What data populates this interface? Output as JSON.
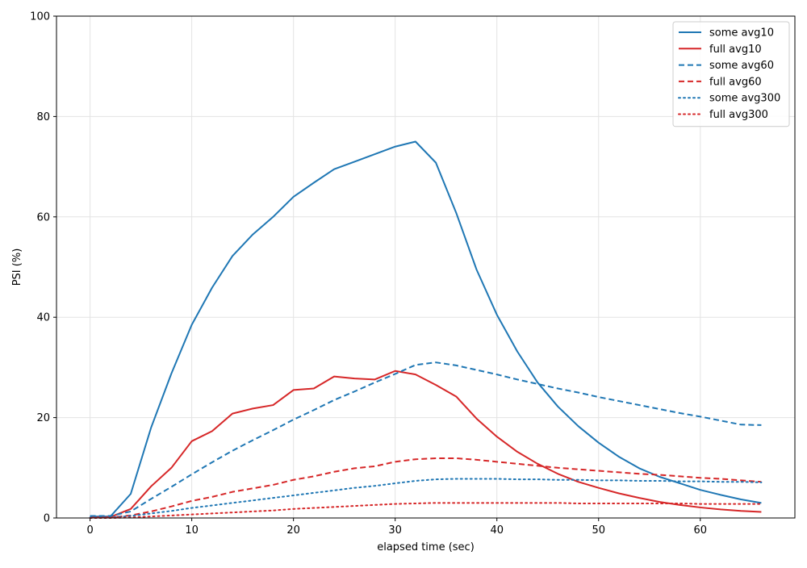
{
  "chart_data": {
    "type": "line",
    "title": "",
    "xlabel": "elapsed time (sec)",
    "ylabel": "PSI (%)",
    "xlim": [
      -3.3,
      69.3
    ],
    "ylim": [
      0,
      100
    ],
    "xticks": [
      0,
      10,
      20,
      30,
      40,
      50,
      60
    ],
    "yticks": [
      0,
      20,
      40,
      60,
      80,
      100
    ],
    "grid": true,
    "legend_position": "top-right",
    "x": [
      0,
      2,
      4,
      6,
      8,
      10,
      12,
      14,
      16,
      18,
      20,
      22,
      24,
      26,
      28,
      30,
      32,
      34,
      36,
      38,
      40,
      42,
      44,
      46,
      48,
      50,
      52,
      54,
      56,
      58,
      60,
      62,
      64,
      66
    ],
    "series": [
      {
        "name": "some avg10",
        "color": "#1f77b4",
        "style": "solid",
        "values": [
          0.3,
          0.3,
          4.8,
          18.0,
          28.8,
          38.5,
          45.9,
          52.2,
          56.5,
          60.0,
          64.0,
          66.8,
          69.5,
          71.0,
          72.5,
          74.0,
          75.0,
          70.8,
          60.8,
          49.5,
          40.5,
          33.2,
          27.0,
          22.2,
          18.3,
          15.0,
          12.2,
          9.9,
          8.2,
          6.9,
          5.6,
          4.6,
          3.7,
          3.0
        ]
      },
      {
        "name": "full avg10",
        "color": "#d62728",
        "style": "solid",
        "values": [
          0.1,
          0.2,
          1.8,
          6.3,
          10.0,
          15.3,
          17.3,
          20.8,
          21.8,
          22.5,
          25.5,
          25.8,
          28.2,
          27.8,
          27.6,
          29.3,
          28.6,
          26.5,
          24.2,
          19.8,
          16.2,
          13.2,
          10.8,
          8.8,
          7.2,
          6.0,
          4.9,
          4.0,
          3.2,
          2.6,
          2.1,
          1.7,
          1.4,
          1.2
        ]
      },
      {
        "name": "some avg60",
        "color": "#1f77b4",
        "style": "dashed",
        "values": [
          0.4,
          0.4,
          1.3,
          3.8,
          6.2,
          8.7,
          11.1,
          13.4,
          15.5,
          17.5,
          19.6,
          21.5,
          23.5,
          25.2,
          27.0,
          28.7,
          30.5,
          31.0,
          30.4,
          29.5,
          28.6,
          27.6,
          26.7,
          25.8,
          25.0,
          24.1,
          23.3,
          22.5,
          21.7,
          20.9,
          20.2,
          19.4,
          18.6,
          18.5
        ]
      },
      {
        "name": "full avg60",
        "color": "#d62728",
        "style": "dashed",
        "values": [
          0.1,
          0.1,
          0.5,
          1.3,
          2.3,
          3.4,
          4.2,
          5.2,
          5.9,
          6.6,
          7.6,
          8.3,
          9.2,
          9.9,
          10.3,
          11.2,
          11.7,
          11.9,
          11.9,
          11.6,
          11.2,
          10.8,
          10.4,
          10.0,
          9.7,
          9.4,
          9.1,
          8.8,
          8.6,
          8.3,
          8.0,
          7.8,
          7.5,
          7.2
        ]
      },
      {
        "name": "some avg300",
        "color": "#1f77b4",
        "style": "dotted",
        "values": [
          0.1,
          0.1,
          0.4,
          0.9,
          1.4,
          2.0,
          2.5,
          3.0,
          3.5,
          4.0,
          4.5,
          5.0,
          5.5,
          6.0,
          6.4,
          6.9,
          7.4,
          7.7,
          7.8,
          7.8,
          7.8,
          7.7,
          7.7,
          7.6,
          7.6,
          7.5,
          7.5,
          7.4,
          7.4,
          7.3,
          7.3,
          7.2,
          7.2,
          7.1
        ]
      },
      {
        "name": "full avg300",
        "color": "#d62728",
        "style": "dotted",
        "values": [
          0.0,
          0.0,
          0.1,
          0.3,
          0.5,
          0.7,
          0.9,
          1.1,
          1.3,
          1.5,
          1.8,
          2.0,
          2.2,
          2.4,
          2.6,
          2.8,
          2.9,
          3.0,
          3.0,
          3.0,
          3.0,
          3.0,
          3.0,
          3.0,
          2.9,
          2.9,
          2.9,
          2.9,
          2.9,
          2.9,
          2.8,
          2.8,
          2.8,
          2.8
        ]
      }
    ]
  }
}
